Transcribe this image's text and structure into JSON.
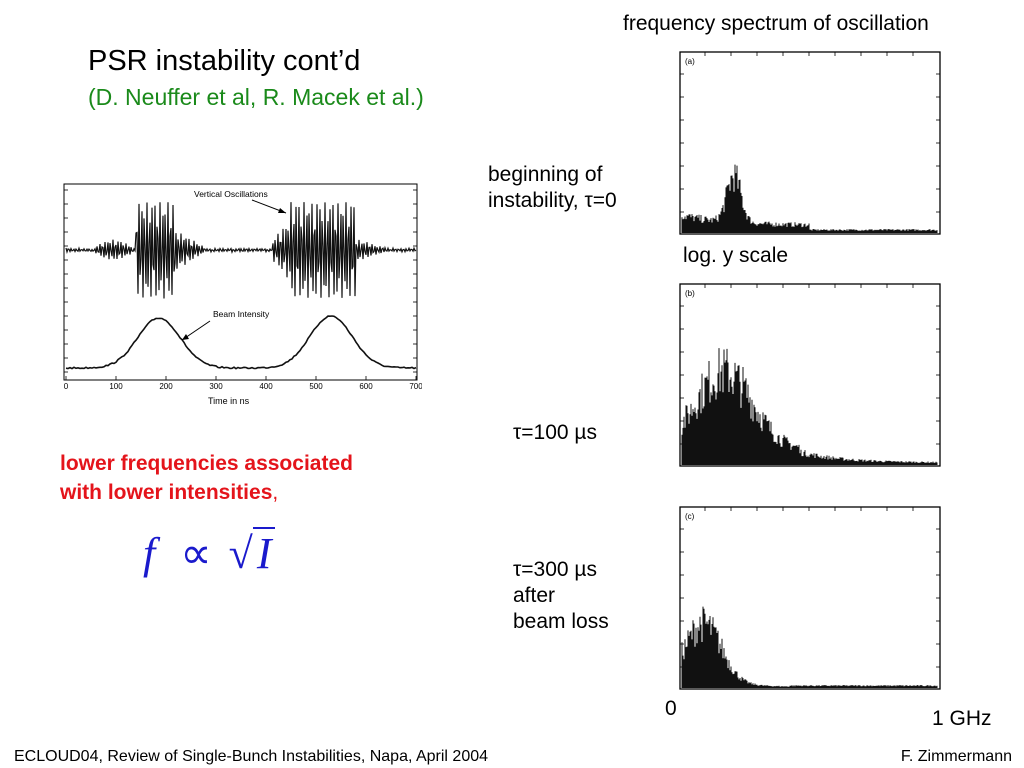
{
  "slide": {
    "title": "PSR instability cont’d",
    "subtitle": "(D. Neuffer et al, R. Macek et al.)",
    "spectrum_title": "frequency spectrum of oscillation",
    "red_note_line1": "lower frequencies associated",
    "red_note_line2": "with lower intensities",
    "red_note_comma": ",",
    "formula_f": "f",
    "formula_prop": "∝",
    "formula_sqrt": "√",
    "formula_I": "I",
    "footer_left": "ECLOUD04, Review of Single-Bunch Instabilities, Napa, April 2004",
    "footer_right": "F. Zimmermann"
  },
  "spectra": {
    "label_a_line1": "beginning of",
    "label_a_line2": "instability, τ=0",
    "log_scale": "log. y scale",
    "label_b": "τ=100 µs",
    "label_c_line1": "τ=300 µs",
    "label_c_line2": "after",
    "label_c_line3": "beam loss",
    "panel_a": "(a)",
    "panel_b": "(b)",
    "panel_c": "(c)",
    "axis_start": "0",
    "axis_end": "1 GHz"
  },
  "oscillation_plot": {
    "label_vertical": "Vertical Oscillations",
    "label_intensity": "Beam Intensity",
    "xlabel": "Time in ns",
    "xticks": [
      "0",
      "100",
      "200",
      "300",
      "400",
      "500",
      "600",
      "700"
    ]
  }
}
